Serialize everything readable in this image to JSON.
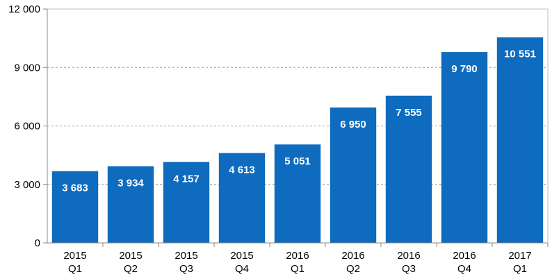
{
  "chart_data": {
    "type": "bar",
    "categories": [
      [
        "2015",
        "Q1"
      ],
      [
        "2015",
        "Q2"
      ],
      [
        "2015",
        "Q3"
      ],
      [
        "2015",
        "Q4"
      ],
      [
        "2016",
        "Q1"
      ],
      [
        "2016",
        "Q2"
      ],
      [
        "2016",
        "Q3"
      ],
      [
        "2016",
        "Q4"
      ],
      [
        "2017",
        "Q1"
      ]
    ],
    "values": [
      3683,
      3934,
      4157,
      4613,
      5051,
      6950,
      7555,
      9790,
      10551
    ],
    "data_labels": [
      "3 683",
      "3 934",
      "4 157",
      "4 613",
      "5 051",
      "6 950",
      "7 555",
      "9 790",
      "10 551"
    ],
    "y_ticks": [
      0,
      3000,
      6000,
      9000,
      12000
    ],
    "y_tick_labels": [
      "0",
      "3 000",
      "6 000",
      "9 000",
      "12 000"
    ],
    "ylim": [
      0,
      12000
    ],
    "grid": true,
    "legend": "none",
    "title": "",
    "xlabel": "",
    "ylabel": "",
    "colors": {
      "bar": "#0E6BBE",
      "grid": "#9a9a9a",
      "axis": "#888888"
    }
  }
}
